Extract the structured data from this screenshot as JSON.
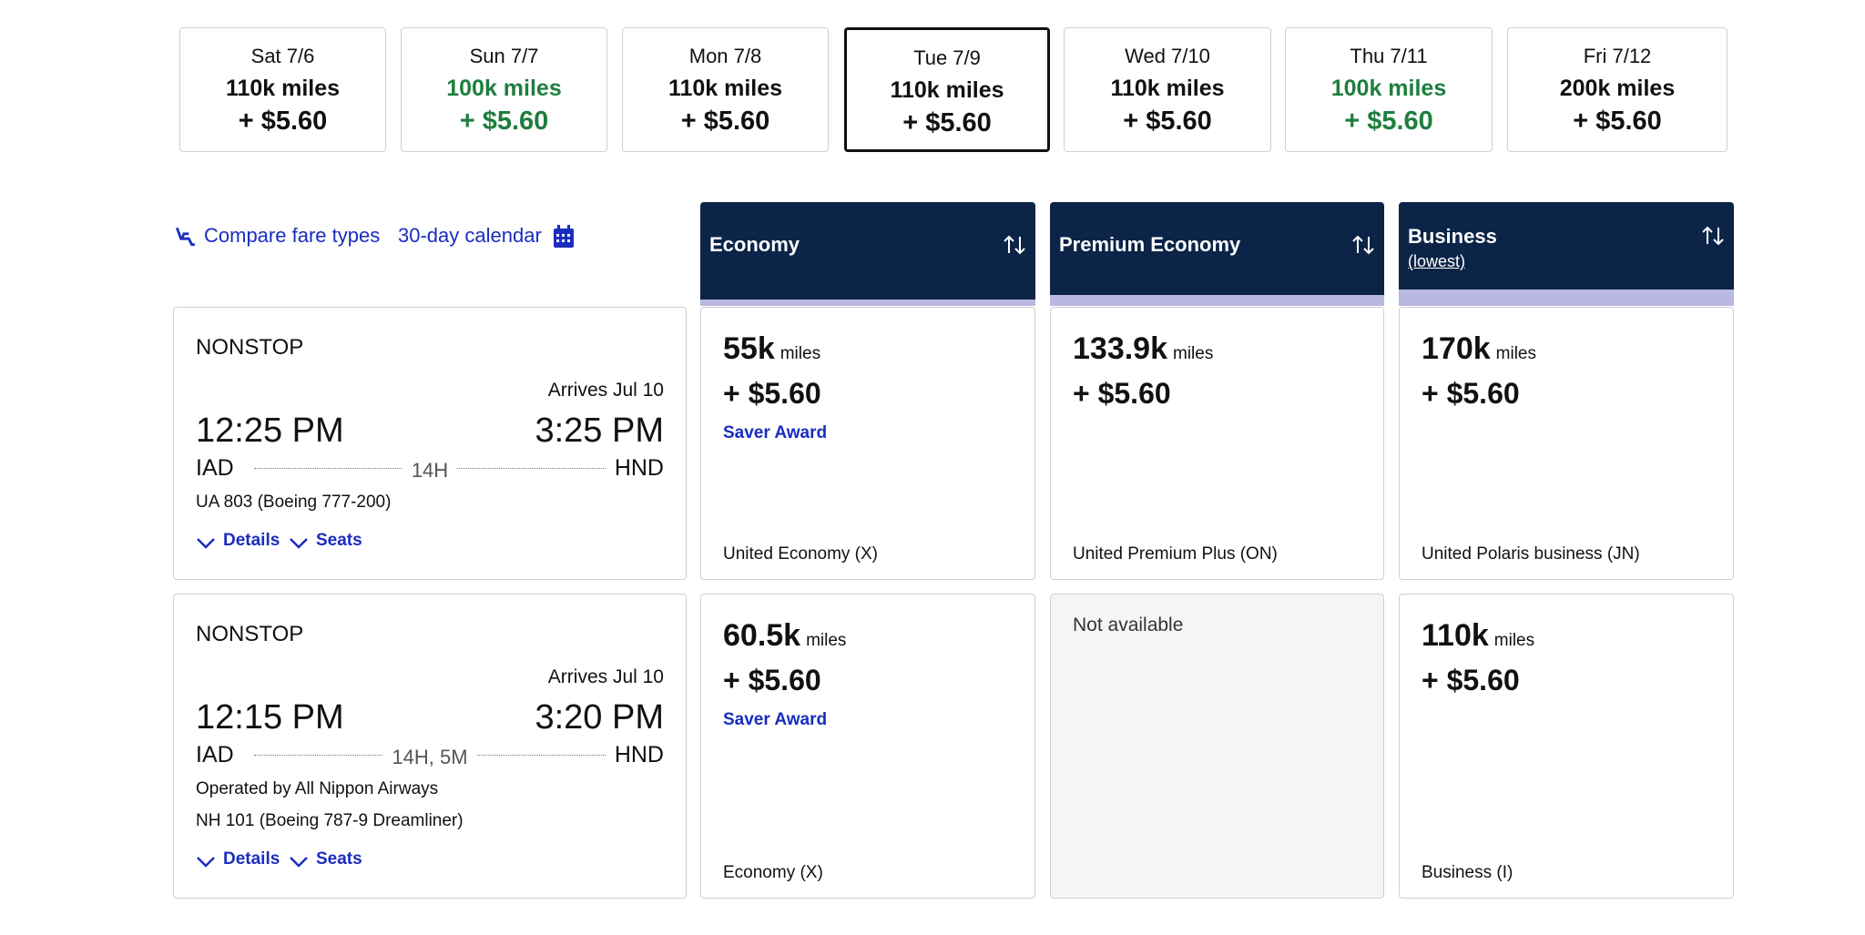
{
  "dates": [
    {
      "day": "Sat 7/6",
      "miles": "110k miles",
      "price": "+ $5.60",
      "color": "#111111"
    },
    {
      "day": "Sun 7/7",
      "miles": "100k miles",
      "price": "+ $5.60",
      "color": "#1e7e3e"
    },
    {
      "day": "Mon 7/8",
      "miles": "110k miles",
      "price": "+ $5.60",
      "color": "#111111"
    },
    {
      "day": "Tue 7/9",
      "miles": "110k miles",
      "price": "+ $5.60",
      "color": "#111111",
      "selected": true
    },
    {
      "day": "Wed 7/10",
      "miles": "110k miles",
      "price": "+ $5.60",
      "color": "#111111"
    },
    {
      "day": "Thu 7/11",
      "miles": "100k miles",
      "price": "+ $5.60",
      "color": "#1e7e3e"
    },
    {
      "day": "Fri 7/12",
      "miles": "200k miles",
      "price": "+ $5.60",
      "color": "#111111"
    }
  ],
  "links": {
    "compare": "Compare fare types",
    "calendar": "30-day calendar"
  },
  "columns": [
    {
      "title": "Economy"
    },
    {
      "title": "Premium Economy"
    },
    {
      "title": "Business",
      "note": "(lowest)"
    }
  ],
  "flights": [
    {
      "stops": "NONSTOP",
      "arrives": "Arrives Jul 10",
      "depart_time": "12:25 PM",
      "arrive_time": "3:25 PM",
      "origin": "IAD",
      "destination": "HND",
      "duration": "14H",
      "info": [
        "UA 803 (Boeing 777-200)"
      ],
      "details": "Details",
      "seats": "Seats",
      "fares": [
        {
          "miles": "55k",
          "unit": "miles",
          "price": "+ $5.60",
          "award": "Saver Award",
          "fare_class": "United Economy (X)"
        },
        {
          "miles": "133.9k",
          "unit": "miles",
          "price": "+ $5.60",
          "fare_class": "United Premium Plus (ON)"
        },
        {
          "miles": "170k",
          "unit": "miles",
          "price": "+ $5.60",
          "fare_class": "United Polaris business (JN)"
        }
      ]
    },
    {
      "stops": "NONSTOP",
      "arrives": "Arrives Jul 10",
      "depart_time": "12:15 PM",
      "arrive_time": "3:20 PM",
      "origin": "IAD",
      "destination": "HND",
      "duration": "14H, 5M",
      "info": [
        "Operated by All Nippon Airways",
        "NH 101 (Boeing 787-9 Dreamliner)"
      ],
      "details": "Details",
      "seats": "Seats",
      "fares": [
        {
          "miles": "60.5k",
          "unit": "miles",
          "price": "+ $5.60",
          "award": "Saver Award",
          "fare_class": "Economy (X)"
        },
        {
          "status": "Not available"
        },
        {
          "miles": "110k",
          "unit": "miles",
          "price": "+ $5.60",
          "fare_class": "Business (I)"
        }
      ]
    }
  ]
}
